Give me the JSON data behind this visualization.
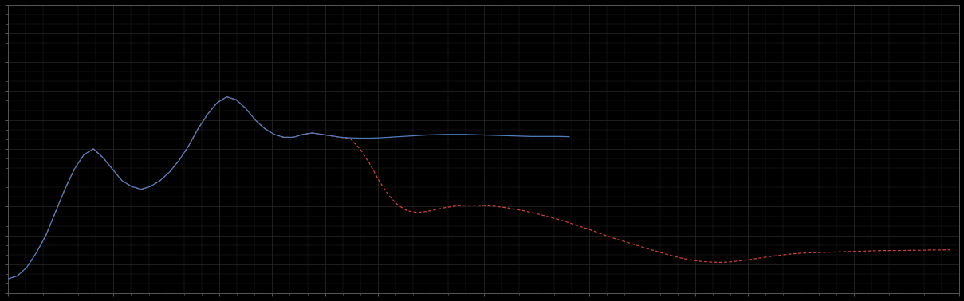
{
  "background_color": "#000000",
  "plot_bg_color": "#000000",
  "grid_color": "#2a2a2a",
  "line1_color": "#4f7fbe",
  "line2_color": "#d04040",
  "figsize": [
    12.09,
    3.78
  ],
  "dpi": 100,
  "ylim": [
    0,
    10
  ],
  "xlim": [
    0,
    100
  ],
  "blue_x": [
    0,
    1,
    2,
    3,
    4,
    5,
    6,
    7,
    8,
    9,
    10,
    11,
    12,
    13,
    14,
    15,
    16,
    17,
    18,
    19,
    20,
    21,
    22,
    23,
    24,
    25,
    26,
    27,
    28,
    29,
    30,
    31,
    32,
    33,
    34,
    35,
    36,
    37,
    38,
    39,
    40,
    41,
    42,
    43,
    44,
    45,
    46,
    47,
    48,
    49,
    50,
    51,
    52,
    53,
    54,
    55,
    56,
    57,
    58,
    59
  ],
  "blue_y": [
    0.5,
    0.6,
    0.9,
    1.4,
    2.0,
    2.8,
    3.6,
    4.3,
    4.8,
    5.0,
    4.7,
    4.3,
    3.9,
    3.7,
    3.6,
    3.7,
    3.9,
    4.2,
    4.6,
    5.1,
    5.7,
    6.2,
    6.6,
    6.8,
    6.7,
    6.4,
    6.0,
    5.7,
    5.5,
    5.4,
    5.4,
    5.5,
    5.55,
    5.5,
    5.45,
    5.4,
    5.38,
    5.37,
    5.37,
    5.38,
    5.4,
    5.42,
    5.44,
    5.46,
    5.48,
    5.49,
    5.5,
    5.5,
    5.5,
    5.49,
    5.48,
    5.47,
    5.46,
    5.45,
    5.44,
    5.43,
    5.43,
    5.43,
    5.43,
    5.42
  ],
  "red_x": [
    0,
    1,
    2,
    3,
    4,
    5,
    6,
    7,
    8,
    9,
    10,
    11,
    12,
    13,
    14,
    15,
    16,
    17,
    18,
    19,
    20,
    21,
    22,
    23,
    24,
    25,
    26,
    27,
    28,
    29,
    30,
    31,
    32,
    33,
    34,
    35,
    36,
    37,
    38,
    39,
    40,
    41,
    42,
    43,
    44,
    45,
    46,
    47,
    48,
    49,
    50,
    51,
    52,
    53,
    54,
    55,
    56,
    57,
    58,
    59,
    60,
    61,
    62,
    63,
    64,
    65,
    66,
    67,
    68,
    69,
    70,
    71,
    72,
    73,
    74,
    75,
    76,
    77,
    78,
    79,
    80,
    81,
    82,
    83,
    84,
    85,
    86,
    87,
    88,
    89,
    90,
    91,
    92,
    93,
    94,
    95,
    96,
    97,
    98,
    99
  ],
  "red_y": [
    0.5,
    0.6,
    0.9,
    1.4,
    2.0,
    2.8,
    3.6,
    4.3,
    4.8,
    5.0,
    4.7,
    4.3,
    3.9,
    3.7,
    3.6,
    3.7,
    3.9,
    4.2,
    4.6,
    5.1,
    5.7,
    6.2,
    6.6,
    6.8,
    6.7,
    6.4,
    6.0,
    5.7,
    5.5,
    5.4,
    5.4,
    5.5,
    5.55,
    5.5,
    5.45,
    5.4,
    5.35,
    5.0,
    4.5,
    3.9,
    3.4,
    3.05,
    2.85,
    2.8,
    2.83,
    2.9,
    2.97,
    3.02,
    3.05,
    3.05,
    3.04,
    3.02,
    2.98,
    2.93,
    2.87,
    2.8,
    2.72,
    2.63,
    2.54,
    2.44,
    2.33,
    2.22,
    2.1,
    1.98,
    1.87,
    1.77,
    1.67,
    1.57,
    1.47,
    1.37,
    1.28,
    1.2,
    1.14,
    1.1,
    1.08,
    1.07,
    1.09,
    1.13,
    1.17,
    1.22,
    1.27,
    1.31,
    1.35,
    1.38,
    1.4,
    1.41,
    1.42,
    1.43,
    1.44,
    1.45,
    1.46,
    1.47,
    1.48,
    1.48,
    1.48,
    1.49,
    1.49,
    1.5,
    1.5,
    1.51
  ]
}
